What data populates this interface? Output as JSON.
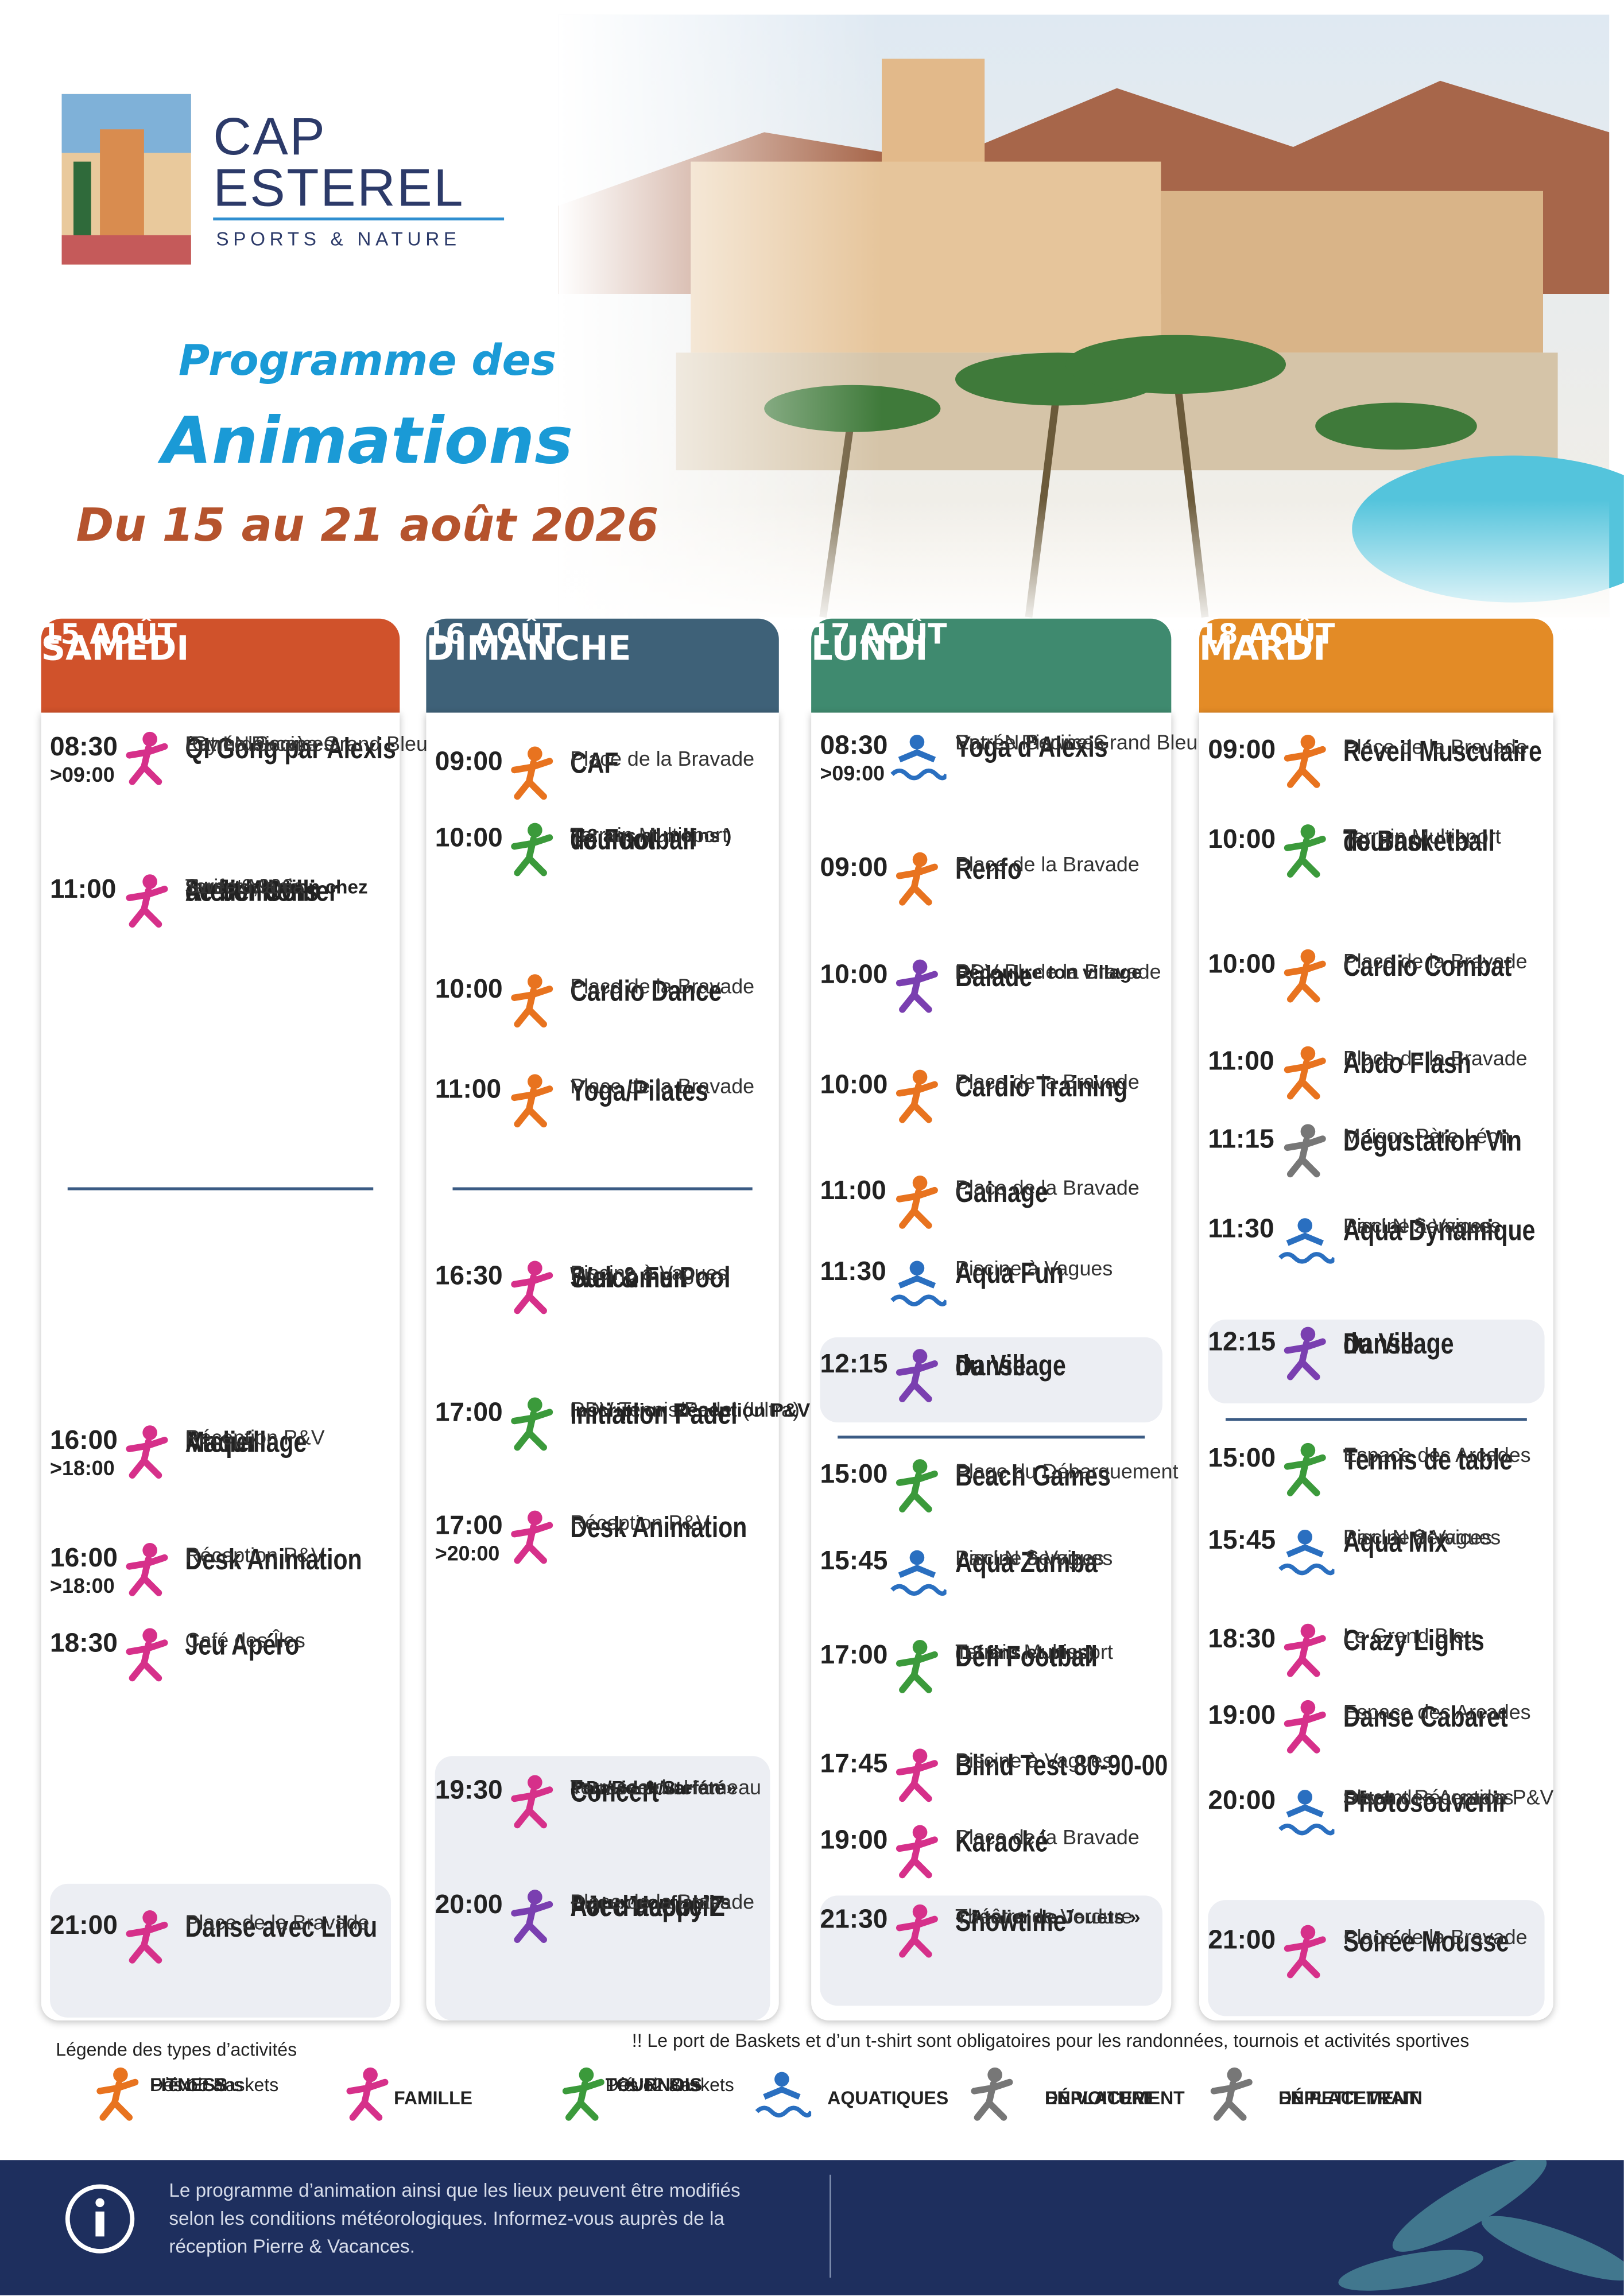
{
  "brand": {
    "name_line1": "CAP",
    "name_line2": "ESTEREL",
    "tagline": "SPORTS & NATURE"
  },
  "header": {
    "title_line1": "Programme des",
    "title_line2": "Animations",
    "dates": "Du 15 au 21 août 2026"
  },
  "days": [
    {
      "day": "SAMEDI",
      "date": "15 AOÛT",
      "color": "#d0522b",
      "events": [
        {
          "time": "08:30",
          "until": ">09:00",
          "title": [
            "QI Gong par Alexis"
          ],
          "details": [
            "(Gym douce)",
            "Par LN Services",
            "Entrée Piscine Grand Bleu"
          ]
        },
        {
          "time": "11:00",
          "title": [
            "Atelier Collier",
            "de bonbons"
          ],
          "notes": [
            "Sur inscription chez",
            "Sweet Mania"
          ],
          "details": [
            "Tarif : 6,90€",
            "Sweet Mania"
          ]
        },
        {
          "time": "16:00",
          "until": ">18:00",
          "title": [
            "Atelier",
            "Maquillage"
          ],
          "details": [
            "Réception P&V"
          ]
        },
        {
          "time": "16:00",
          "until": ">18:00",
          "title": [
            "Desk Animation"
          ],
          "details": [
            "Réception P&V"
          ]
        },
        {
          "time": "18:30",
          "title": [
            "Jeu Apéro"
          ],
          "details": [
            "Café des Îles"
          ]
        },
        {
          "time": "21:00",
          "title": [
            "Danse avec Lilou"
          ],
          "details": [
            "Place de la Bravade"
          ]
        }
      ]
    },
    {
      "day": "DIMANCHE",
      "date": "16 AOÛT",
      "color": "#3e6178",
      "events": [
        {
          "time": "09:00",
          "title": [
            "CAF"
          ],
          "details": [
            "Place de la Bravade"
          ]
        },
        {
          "time": "10:00",
          "title": [
            "Tournoi",
            "de Football"
          ],
          "notes": [
            "(12 ans et moins )"
          ],
          "details": [
            "Terrain Multisport"
          ]
        },
        {
          "time": "10:00",
          "title": [
            "Cardio Dance"
          ],
          "details": [
            "Place de la Bravade"
          ]
        },
        {
          "time": "11:00",
          "title": [
            "Yoga/Pilates"
          ],
          "details": [
            "Place de la Bravade"
          ]
        },
        {
          "time": "16:30",
          "title": [
            "Welcome Pool",
            "Sun & Fun"
          ],
          "details": [
            "Piscine à Vagues"
          ]
        },
        {
          "time": "17:00",
          "title": [
            "Initiation Padel"
          ],
          "details": [
            "RDV Tennis/Padel (Ultra)"
          ],
          "notes": [
            "Inscription Réception P&V"
          ]
        },
        {
          "time": "17:00",
          "until": ">20:00",
          "title": [
            "Desk Animation"
          ],
          "details": [
            "Réception P&V"
          ]
        },
        {
          "time": "19:30",
          "title": [
            "Concert"
          ],
          "notes": [
            "« David & Stefan »",
            "Pop/Rock/variété"
          ],
          "details": [
            "Terrasse du Hameau"
          ]
        },
        {
          "time": "20:00",
          "title": [
            "Pot d’accueil",
            "Avec Happy’Z"
          ],
          "notes": [
            "+ Jeux gonflables"
          ],
          "details": [
            "Place de la Bravade"
          ]
        }
      ]
    },
    {
      "day": "LUNDI",
      "date": "17 AOÛT",
      "color": "#3f8a6f",
      "events": [
        {
          "time": "08:30",
          "until": ">09:00",
          "title": [
            "Yoga d’Alexis"
          ],
          "details": [
            "Par LN Services",
            "Entrée Piscine Grand Bleu"
          ]
        },
        {
          "time": "09:00",
          "title": [
            "Renfo"
          ],
          "details": [
            "Place de la Bravade"
          ]
        },
        {
          "time": "10:00",
          "title": [
            "Balade"
          ],
          "notes": [
            "Découvre ton village"
          ],
          "details": [
            "RDV Pl. de la Bravade"
          ]
        },
        {
          "time": "10:00",
          "title": [
            "Cardio Training"
          ],
          "details": [
            "Place de la Bravade"
          ]
        },
        {
          "time": "11:00",
          "title": [
            "Gainage"
          ],
          "details": [
            "Place de la Bravade"
          ]
        },
        {
          "time": "11:30",
          "title": [
            "Aqua Fun"
          ],
          "details": [
            "Piscine à Vagues"
          ]
        },
        {
          "time": "12:15",
          "title": [
            "Danse",
            "du Village"
          ]
        },
        {
          "time": "15:00",
          "title": [
            "Beach Games"
          ],
          "details": [
            "Plage du Débarquement"
          ]
        },
        {
          "time": "15:45",
          "title": [
            "Aqua Zumba"
          ],
          "details": [
            "Par LN Services",
            "Piscine à Vagues"
          ]
        },
        {
          "time": "17:00",
          "title": [
            "Défi Football"
          ],
          "notes": [
            "(13 ans et plus)"
          ],
          "details": [
            "Terrain Multisport"
          ]
        },
        {
          "time": "17:45",
          "title": [
            "Blind Test 80-90-00"
          ],
          "details": [
            "Piscine à Vagues"
          ]
        },
        {
          "time": "19:00",
          "title": [
            "Karaoké"
          ],
          "details": [
            "Place de la Bravade"
          ]
        },
        {
          "time": "21:30",
          "title": [
            "Showtime"
          ],
          "notes": [
            "« Atelier de Jouets »"
          ],
          "details": [
            "Théâtre de Verdure"
          ]
        }
      ]
    },
    {
      "day": "MARDI",
      "date": "18 AOÛT",
      "color": "#e38b26",
      "events": [
        {
          "time": "09:00",
          "title": [
            "Réveil Musculaire"
          ],
          "details": [
            "Place de la Bravade"
          ]
        },
        {
          "time": "10:00",
          "title": [
            "Tournoi",
            "de Basketball"
          ],
          "details": [
            "Terrain Multisport"
          ]
        },
        {
          "time": "10:00",
          "title": [
            "Cardio Combat"
          ],
          "details": [
            "Place de la Bravade"
          ]
        },
        {
          "time": "11:00",
          "title": [
            "Abdo Flash"
          ],
          "details": [
            "Place de la Bravade"
          ]
        },
        {
          "time": "11:15",
          "title": [
            "Dégustation Vin"
          ],
          "details": [
            "Maison Père Léon"
          ]
        },
        {
          "time": "11:30",
          "title": [
            "Aqua Dynamique"
          ],
          "details": [
            "Par LN Services",
            "Piscine à Vagues"
          ]
        },
        {
          "time": "12:15",
          "title": [
            "Danse",
            "du Village"
          ]
        },
        {
          "time": "15:00",
          "title": [
            "Tennis de table"
          ],
          "details": [
            "Espace des Arcades"
          ]
        },
        {
          "time": "15:45",
          "title": [
            "Aqua Mix"
          ],
          "details": [
            "Par LN Services",
            "Piscine à Vagues"
          ]
        },
        {
          "time": "18:30",
          "title": [
            "Crazy Lights"
          ],
          "details": [
            "Le Grand Bleu"
          ]
        },
        {
          "time": "19:00",
          "title": [
            "Danse Cabaret"
          ],
          "details": [
            "Espace des Arcades"
          ]
        },
        {
          "time": "20:00",
          "title": [
            "Photosouvenir"
          ],
          "notes": [
            "Stitch"
          ],
          "details": [
            "Place des Arcades",
            "Devant Réception P&V"
          ]
        },
        {
          "time": "21:00",
          "title": [
            "Soirée Mousse"
          ],
          "details": [
            "Place de la Bravade"
          ]
        }
      ]
    }
  ],
  "legend": {
    "title": "Légende des types d’activités",
    "warning": "!! Le port de Baskets et d’un t-shirt sont obligatoires pour les randonnées, tournois et activités sportives",
    "items": [
      {
        "label": [
          "FITNESS"
        ],
        "details": [
          "Prévoir Baskets",
          "Dès 15 ans"
        ]
      },
      {
        "label": [
          "FAMILLE"
        ]
      },
      {
        "label": [
          "TOURNOIS"
        ],
        "details": [
          "Prévoir Baskets",
          "Dès 12 ans"
        ]
      },
      {
        "label": [
          "AQUATIQUES"
        ]
      },
      {
        "label": [
          "DÉPLACEMENT",
          "EN VOITURE"
        ]
      },
      {
        "label": [
          "DÉPLACEMENT",
          "EN PETIT TRAIN"
        ]
      }
    ]
  },
  "footer": {
    "lines": [
      "Le programme d’animation ainsi que les lieux peuvent être modifiés",
      "selon les conditions météorologiques. Informez-vous auprès de la",
      "réception Pierre & Vacances."
    ]
  }
}
